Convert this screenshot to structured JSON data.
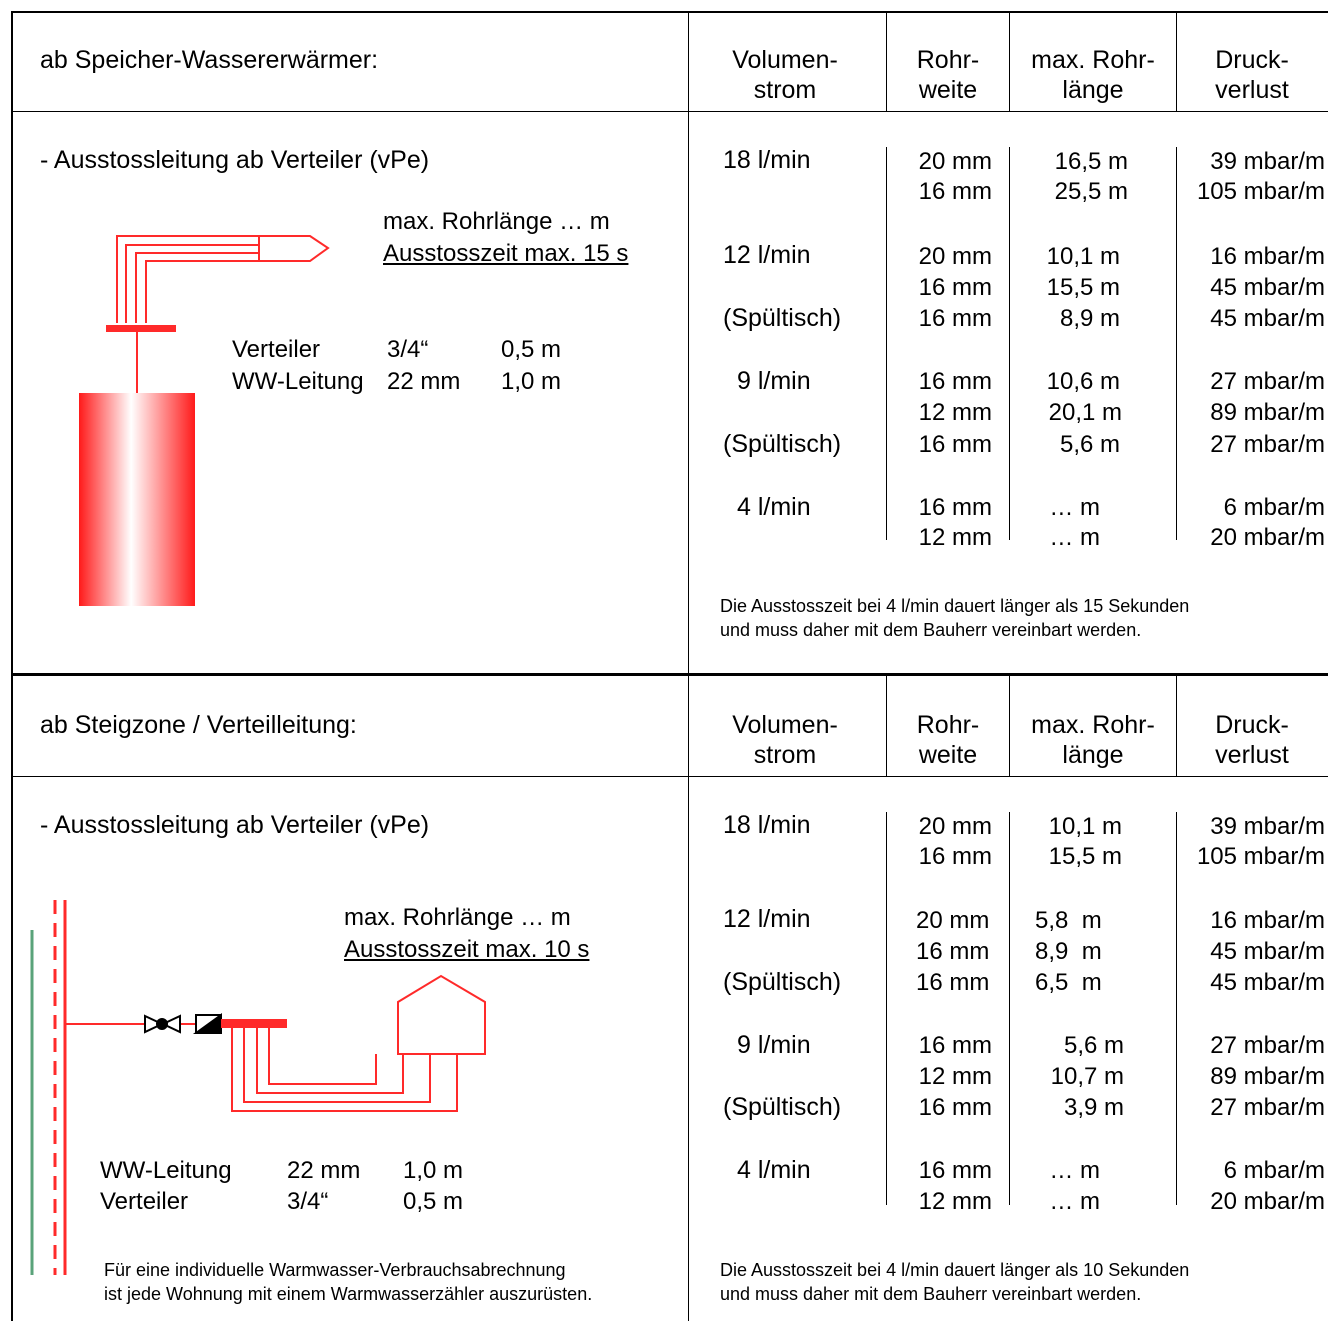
{
  "headers": {
    "volumenstrom": [
      "Volumen-",
      "strom"
    ],
    "rohrweite": [
      "Rohr-",
      "weite"
    ],
    "max_rohrlaenge": [
      "max. Rohr-",
      "länge"
    ],
    "druckverlust": [
      "Druck-",
      "verlust"
    ]
  },
  "section1": {
    "title": "ab Speicher-Wassererwärmer:",
    "subtitle": "- Ausstossleitung ab Verteiler (vPe)",
    "diagram": {
      "max_label": "max. Rohrlänge … m",
      "time_label": "Ausstosszeit max. 15 s",
      "rows": [
        {
          "name": "Verteiler",
          "size": "3/4“",
          "length": "0,5 m"
        },
        {
          "name": "WW-Leitung",
          "size": "22 mm",
          "length": "1,0 m"
        }
      ]
    },
    "groups": [
      {
        "flow": "18 l/min",
        "rows": [
          {
            "weite": "20 mm",
            "laenge": "16,5 m",
            "verlust": "39 mbar/m"
          },
          {
            "weite": "16 mm",
            "laenge": "25,5 m",
            "verlust": "105 mbar/m"
          }
        ]
      },
      {
        "flow": "12 l/min",
        "rows": [
          {
            "weite": "20 mm",
            "laenge": "10,1 m",
            "verlust": "16 mbar/m"
          },
          {
            "weite": "16 mm",
            "laenge": "15,5 m",
            "verlust": "45 mbar/m"
          }
        ]
      },
      {
        "flow": "(Spültisch)",
        "rows": [
          {
            "weite": "16 mm",
            "laenge": "8,9 m",
            "verlust": "45 mbar/m"
          }
        ]
      },
      {
        "flow": "9 l/min",
        "rows": [
          {
            "weite": "16 mm",
            "laenge": "10,6 m",
            "verlust": "27 mbar/m"
          },
          {
            "weite": "12 mm",
            "laenge": "20,1 m",
            "verlust": "89 mbar/m"
          }
        ]
      },
      {
        "flow": "(Spültisch)",
        "rows": [
          {
            "weite": "16 mm",
            "laenge": "5,6 m",
            "verlust": "27 mbar/m"
          }
        ]
      },
      {
        "flow": "4 l/min",
        "rows": [
          {
            "weite": "16 mm",
            "laenge": "… m",
            "verlust": "6 mbar/m"
          },
          {
            "weite": "12 mm",
            "laenge": "… m",
            "verlust": "20 mbar/m"
          }
        ]
      }
    ],
    "note": [
      "Die Ausstosszeit bei 4 l/min dauert länger als 15 Sekunden",
      "und muss daher mit dem Bauherr vereinbart werden."
    ]
  },
  "section2": {
    "title": "ab Steigzone / Verteilleitung:",
    "subtitle": "- Ausstossleitung ab Verteiler (vPe)",
    "diagram": {
      "max_label": "max. Rohrlänge … m",
      "time_label": "Ausstosszeit max. 10 s",
      "rows": [
        {
          "name": "WW-Leitung",
          "size": "22 mm",
          "length": "1,0 m"
        },
        {
          "name": "Verteiler",
          "size": "3/4“",
          "length": "0,5 m"
        }
      ]
    },
    "groups": [
      {
        "flow": "18 l/min",
        "rows": [
          {
            "weite": "20 mm",
            "laenge": "10,1 m",
            "verlust": "39 mbar/m"
          },
          {
            "weite": "16 mm",
            "laenge": "15,5 m",
            "verlust": "105 mbar/m"
          }
        ]
      },
      {
        "flow": "12 l/min",
        "rows": [
          {
            "weite": "20 mm",
            "laenge": "5,8  m",
            "verlust": "16 mbar/m"
          },
          {
            "weite": "16 mm",
            "laenge": "8,9  m",
            "verlust": "45 mbar/m"
          }
        ]
      },
      {
        "flow": "(Spültisch)",
        "rows": [
          {
            "weite": "16 mm",
            "laenge": "6,5  m",
            "verlust": "45 mbar/m"
          }
        ]
      },
      {
        "flow": "9 l/min",
        "rows": [
          {
            "weite": "16 mm",
            "laenge": "5,6 m",
            "verlust": "27 mbar/m"
          },
          {
            "weite": "12 mm",
            "laenge": "10,7 m",
            "verlust": "89 mbar/m"
          }
        ]
      },
      {
        "flow": "(Spültisch)",
        "rows": [
          {
            "weite": "16 mm",
            "laenge": "3,9 m",
            "verlust": "27 mbar/m"
          }
        ]
      },
      {
        "flow": "4 l/min",
        "rows": [
          {
            "weite": "16 mm",
            "laenge": "… m",
            "verlust": "6 mbar/m"
          },
          {
            "weite": "12 mm",
            "laenge": "… m",
            "verlust": "20 mbar/m"
          }
        ]
      }
    ],
    "note": [
      "Die Ausstosszeit bei 4 l/min dauert länger als 10 Sekunden",
      "und muss daher mit dem Bauherr vereinbart werden."
    ],
    "footnote": [
      "Für eine individuelle Warmwasser-Verbrauchsabrechnung",
      "ist jede Wohnung mit einem Warmwasserzähler auszurüsten."
    ]
  },
  "colors": {
    "pipe": "#ff2a2a",
    "riser_green": "#5aa37a",
    "line": "#000000"
  }
}
